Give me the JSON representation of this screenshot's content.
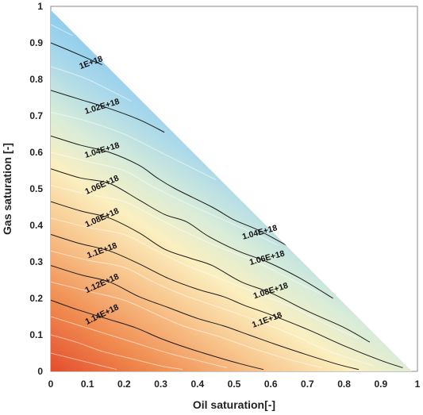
{
  "chart_data": {
    "type": "contour",
    "xlabel": "Oil saturation[-]",
    "ylabel": "Gas saturation [-]",
    "xlim": [
      0,
      1
    ],
    "ylim": [
      0,
      1
    ],
    "x_ticks": [
      "0",
      "0.1",
      "0.2",
      "0.3",
      "0.4",
      "0.5",
      "0.6",
      "0.7",
      "0.8",
      "0.9",
      "1"
    ],
    "y_ticks": [
      "0",
      "0.1",
      "0.2",
      "0.3",
      "0.4",
      "0.5",
      "0.6",
      "0.7",
      "0.8",
      "0.9",
      "1"
    ],
    "domain": "ternary triangle: oil saturation + gas saturation <= 1",
    "colors": {
      "high": "#e2452a",
      "mid": "#fbefc0",
      "low": "#2d6cb8"
    },
    "contour_lines": [
      {
        "label": "1E+18",
        "points": [
          [
            0,
            0.9
          ],
          [
            0.06,
            0.875
          ],
          [
            0.14,
            0.84
          ]
        ]
      },
      {
        "label": "1.02E+18",
        "points": [
          [
            0,
            0.77
          ],
          [
            0.08,
            0.745
          ],
          [
            0.16,
            0.72
          ],
          [
            0.24,
            0.69
          ],
          [
            0.31,
            0.655
          ]
        ]
      },
      {
        "label": "1.04E+18",
        "points": [
          [
            0,
            0.645
          ],
          [
            0.08,
            0.62
          ],
          [
            0.16,
            0.6
          ],
          [
            0.24,
            0.565
          ],
          [
            0.29,
            0.53
          ],
          [
            0.34,
            0.5
          ],
          [
            0.44,
            0.45
          ],
          [
            0.5,
            0.415
          ],
          [
            0.57,
            0.385
          ],
          [
            0.67,
            0.33
          ]
        ]
      },
      {
        "label": "1.06E+18",
        "points": [
          [
            0,
            0.555
          ],
          [
            0.08,
            0.53
          ],
          [
            0.16,
            0.515
          ],
          [
            0.24,
            0.47
          ],
          [
            0.31,
            0.43
          ],
          [
            0.37,
            0.41
          ],
          [
            0.43,
            0.37
          ],
          [
            0.51,
            0.33
          ],
          [
            0.59,
            0.3
          ],
          [
            0.68,
            0.255
          ],
          [
            0.77,
            0.2
          ]
        ]
      },
      {
        "label": "1.08E+18",
        "points": [
          [
            0,
            0.465
          ],
          [
            0.08,
            0.44
          ],
          [
            0.16,
            0.42
          ],
          [
            0.24,
            0.38
          ],
          [
            0.31,
            0.335
          ],
          [
            0.38,
            0.31
          ],
          [
            0.44,
            0.29
          ],
          [
            0.52,
            0.245
          ],
          [
            0.6,
            0.215
          ],
          [
            0.7,
            0.165
          ],
          [
            0.8,
            0.12
          ],
          [
            0.87,
            0.08
          ]
        ]
      },
      {
        "label": "1.1E+18",
        "points": [
          [
            0,
            0.375
          ],
          [
            0.08,
            0.35
          ],
          [
            0.16,
            0.33
          ],
          [
            0.24,
            0.295
          ],
          [
            0.32,
            0.255
          ],
          [
            0.4,
            0.225
          ],
          [
            0.47,
            0.205
          ],
          [
            0.53,
            0.18
          ],
          [
            0.6,
            0.155
          ],
          [
            0.7,
            0.115
          ],
          [
            0.8,
            0.07
          ],
          [
            0.9,
            0.03
          ],
          [
            0.96,
            0.01
          ]
        ]
      },
      {
        "label": "1.12E+18",
        "points": [
          [
            0,
            0.29
          ],
          [
            0.08,
            0.265
          ],
          [
            0.16,
            0.245
          ],
          [
            0.24,
            0.205
          ],
          [
            0.32,
            0.175
          ],
          [
            0.4,
            0.145
          ],
          [
            0.47,
            0.125
          ],
          [
            0.54,
            0.1
          ],
          [
            0.61,
            0.075
          ],
          [
            0.7,
            0.045
          ],
          [
            0.78,
            0.02
          ],
          [
            0.84,
            0.005
          ]
        ]
      },
      {
        "label": "1.14E+18",
        "points": [
          [
            0,
            0.195
          ],
          [
            0.07,
            0.17
          ],
          [
            0.15,
            0.145
          ],
          [
            0.23,
            0.12
          ],
          [
            0.3,
            0.09
          ],
          [
            0.37,
            0.065
          ],
          [
            0.45,
            0.04
          ],
          [
            0.52,
            0.02
          ],
          [
            0.58,
            0.005
          ]
        ]
      }
    ],
    "minor_lines": [
      [
        [
          0,
          0.95
        ],
        [
          0.06,
          0.92
        ]
      ],
      [
        [
          0,
          0.835
        ],
        [
          0.1,
          0.8
        ],
        [
          0.22,
          0.74
        ]
      ],
      [
        [
          0,
          0.71
        ],
        [
          0.1,
          0.685
        ],
        [
          0.2,
          0.65
        ],
        [
          0.3,
          0.6
        ],
        [
          0.4,
          0.55
        ],
        [
          0.45,
          0.525
        ]
      ],
      [
        [
          0,
          0.6
        ],
        [
          0.1,
          0.575
        ],
        [
          0.2,
          0.55
        ],
        [
          0.28,
          0.505
        ],
        [
          0.36,
          0.465
        ],
        [
          0.46,
          0.42
        ],
        [
          0.56,
          0.375
        ],
        [
          0.62,
          0.345
        ]
      ],
      [
        [
          0,
          0.51
        ],
        [
          0.1,
          0.485
        ],
        [
          0.2,
          0.465
        ],
        [
          0.28,
          0.425
        ],
        [
          0.36,
          0.385
        ],
        [
          0.46,
          0.34
        ],
        [
          0.56,
          0.3
        ],
        [
          0.66,
          0.25
        ],
        [
          0.74,
          0.21
        ]
      ],
      [
        [
          0,
          0.42
        ],
        [
          0.1,
          0.395
        ],
        [
          0.2,
          0.375
        ],
        [
          0.28,
          0.335
        ],
        [
          0.36,
          0.295
        ],
        [
          0.46,
          0.255
        ],
        [
          0.56,
          0.215
        ],
        [
          0.66,
          0.175
        ],
        [
          0.76,
          0.125
        ],
        [
          0.84,
          0.09
        ]
      ],
      [
        [
          0,
          0.33
        ],
        [
          0.1,
          0.305
        ],
        [
          0.2,
          0.285
        ],
        [
          0.28,
          0.245
        ],
        [
          0.36,
          0.21
        ],
        [
          0.46,
          0.175
        ],
        [
          0.56,
          0.14
        ],
        [
          0.66,
          0.1
        ],
        [
          0.76,
          0.055
        ],
        [
          0.88,
          0.015
        ]
      ],
      [
        [
          0,
          0.245
        ],
        [
          0.1,
          0.22
        ],
        [
          0.2,
          0.195
        ],
        [
          0.28,
          0.16
        ],
        [
          0.36,
          0.125
        ],
        [
          0.46,
          0.095
        ],
        [
          0.56,
          0.06
        ],
        [
          0.66,
          0.03
        ],
        [
          0.74,
          0.01
        ]
      ],
      [
        [
          0,
          0.15
        ],
        [
          0.08,
          0.125
        ],
        [
          0.16,
          0.1
        ],
        [
          0.24,
          0.075
        ],
        [
          0.32,
          0.05
        ],
        [
          0.4,
          0.03
        ],
        [
          0.48,
          0.01
        ]
      ],
      [
        [
          0,
          0.1
        ],
        [
          0.07,
          0.08
        ],
        [
          0.14,
          0.055
        ],
        [
          0.22,
          0.035
        ],
        [
          0.3,
          0.015
        ],
        [
          0.36,
          0.005
        ]
      ],
      [
        [
          0,
          0.05
        ],
        [
          0.06,
          0.035
        ],
        [
          0.12,
          0.02
        ],
        [
          0.18,
          0.005
        ]
      ]
    ],
    "label_positions": [
      {
        "text": "1E+18",
        "x": 0.11,
        "y": 0.845,
        "angle": -20
      },
      {
        "text": "1.02E+18",
        "x": 0.14,
        "y": 0.725,
        "angle": -17
      },
      {
        "text": "1.04E+18",
        "x": 0.14,
        "y": 0.605,
        "angle": -17
      },
      {
        "text": "1.06E+18",
        "x": 0.14,
        "y": 0.51,
        "angle": -24
      },
      {
        "text": "1.08E+18",
        "x": 0.14,
        "y": 0.42,
        "angle": -24
      },
      {
        "text": "1.1E+18",
        "x": 0.14,
        "y": 0.33,
        "angle": -20
      },
      {
        "text": "1.12E+18",
        "x": 0.14,
        "y": 0.24,
        "angle": -24
      },
      {
        "text": "1.14E+18",
        "x": 0.14,
        "y": 0.155,
        "angle": -26
      },
      {
        "text": "1.04E+18",
        "x": 0.57,
        "y": 0.38,
        "angle": -15
      },
      {
        "text": "1.06E+18",
        "x": 0.59,
        "y": 0.31,
        "angle": -15
      },
      {
        "text": "1.08E+18",
        "x": 0.6,
        "y": 0.22,
        "angle": -18
      },
      {
        "text": "1.1E+18",
        "x": 0.59,
        "y": 0.14,
        "angle": -20
      }
    ]
  }
}
